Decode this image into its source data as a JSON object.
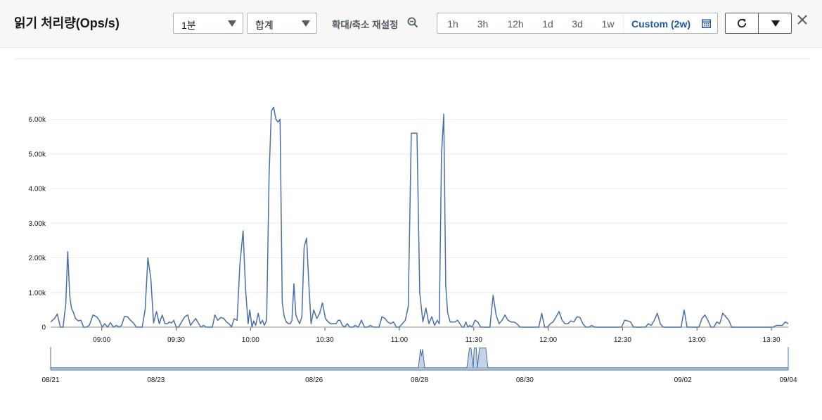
{
  "header": {
    "title": "읽기 처리량(Ops/s)",
    "period_select": "1분",
    "stat_select": "합계",
    "zoom_reset_label": "확대/축소 재설정",
    "time_ranges": [
      "1h",
      "3h",
      "12h",
      "1d",
      "3d",
      "1w"
    ],
    "custom_range_label": "Custom (2w)",
    "icons": {
      "zoom": "zoom-out-icon",
      "calendar": "calendar-icon",
      "refresh": "refresh-icon",
      "dropdown": "caret-down-icon",
      "close": "close-icon"
    }
  },
  "colors": {
    "line": "#4a70a6",
    "grid": "#e9ebed",
    "accent": "#1d5aa5",
    "mini_fill": "#c5d3e6"
  },
  "chart_data": [
    {
      "type": "line",
      "title": "",
      "xlabel": "",
      "ylabel": "",
      "ylim": [
        0,
        6600
      ],
      "grid": true,
      "y_ticks": [
        {
          "value": 0,
          "label": "0"
        },
        {
          "value": 1000,
          "label": "1.00k"
        },
        {
          "value": 2000,
          "label": "2.00k"
        },
        {
          "value": 3000,
          "label": "3.00k"
        },
        {
          "value": 4000,
          "label": "4.00k"
        },
        {
          "value": 5000,
          "label": "5.00k"
        },
        {
          "value": 6000,
          "label": "6.00k"
        }
      ],
      "x_ticks": [
        {
          "t": 540,
          "label": "09:00"
        },
        {
          "t": 570,
          "label": "09:30"
        },
        {
          "t": 600,
          "label": "10:00"
        },
        {
          "t": 630,
          "label": "10:30"
        },
        {
          "t": 660,
          "label": "11:00"
        },
        {
          "t": 690,
          "label": "11:30"
        },
        {
          "t": 720,
          "label": "12:00"
        },
        {
          "t": 750,
          "label": "12:30"
        },
        {
          "t": 780,
          "label": "13:00"
        },
        {
          "t": 810,
          "label": "13:30"
        }
      ],
      "x_unit": "minutes since 00:00",
      "series": [
        {
          "x": [
            519.4,
            521.0,
            522.1,
            523.3,
            524.4,
            525.5,
            526.3,
            527.1,
            527.8,
            528.6,
            529.4,
            530.5,
            531.6,
            532.7,
            533.8,
            535.0,
            536.5,
            537.9,
            539.0,
            540.2,
            541.2,
            542.4,
            543.5,
            544.7,
            545.9,
            547.0,
            548.0,
            549.2,
            550.4,
            551.6,
            552.8,
            554.0,
            555.2,
            556.3,
            557.5,
            558.6,
            559.8,
            560.9,
            562.1,
            563.2,
            564.4,
            565.5,
            566.5,
            567.3,
            568.1,
            569.1,
            570.0,
            571.0,
            572.2,
            573.5,
            574.7,
            575.8,
            576.8,
            577.9,
            579.1,
            580.0,
            581.0,
            582.2,
            583.4,
            584.6,
            585.6,
            586.8,
            588.0,
            589.2,
            590.3,
            591.3,
            592.3,
            593.4,
            594.6,
            595.7,
            597.0,
            598.0,
            599.0,
            599.7,
            600.6,
            601.3,
            602.1,
            603.1,
            604.0,
            604.8,
            605.6,
            606.5,
            607.5,
            608.4,
            609.3,
            610.2,
            611.1,
            611.9,
            612.8,
            613.6,
            614.4,
            615.3,
            616.0,
            616.7,
            617.5,
            618.3,
            619.1,
            619.8,
            620.7,
            621.6,
            622.6,
            623.5,
            624.4,
            625.5,
            626.7,
            627.9,
            629.0,
            630.2,
            631.3,
            632.3,
            633.4,
            634.5,
            635.3,
            636.1,
            637.0,
            637.9,
            639.0,
            640.0,
            641.1,
            642.3,
            643.5,
            644.7,
            645.9,
            647.1,
            648.3,
            649.5,
            650.7,
            651.8,
            653.0,
            654.2,
            655.3,
            656.5,
            657.6,
            658.8,
            660.0,
            661.2,
            662.4,
            663.6,
            664.8,
            666.0,
            667.1,
            668.2,
            669.5,
            670.7,
            671.9,
            673.1,
            674.2,
            675.3,
            676.1,
            677.0,
            677.9,
            678.7,
            679.5,
            680.5,
            681.5,
            682.5,
            683.5,
            684.4,
            685.3,
            686.0,
            686.8,
            687.6,
            688.4,
            689.4,
            690.5,
            691.6,
            692.8,
            694.1,
            695.3,
            696.5,
            697.8,
            699.0,
            700.2,
            701.4,
            702.6,
            703.8,
            705.1,
            706.2,
            707.4,
            708.6,
            709.7,
            710.5,
            711.5,
            712.7,
            713.8,
            715.0,
            716.2,
            717.4,
            718.6,
            719.7,
            720.9,
            722.0,
            723.2,
            724.4,
            725.6,
            726.8,
            728.0,
            729.2,
            730.4,
            731.6,
            732.8,
            734.0,
            735.2,
            736.4,
            737.6,
            738.8,
            740.0,
            741.2,
            742.4,
            743.6,
            744.8,
            746.0,
            747.2,
            748.4,
            749.6,
            750.8,
            752.0,
            753.2,
            754.4,
            755.6,
            756.8,
            758.0,
            759.2,
            760.4,
            761.6,
            762.8,
            764.0,
            765.2,
            766.4,
            767.6,
            768.8,
            770.0,
            771.2,
            772.4,
            773.6,
            774.8,
            776.0,
            777.2,
            778.4,
            779.6,
            780.8,
            782.0,
            783.2,
            784.4,
            785.6,
            786.8,
            788.0,
            789.2,
            790.4,
            791.6,
            792.8,
            794.0,
            795.2,
            796.4,
            797.6,
            798.8,
            800.0,
            801.2,
            802.4,
            803.6,
            804.8,
            806.0,
            807.2,
            808.4,
            809.6,
            810.8,
            812.0,
            813.2,
            814.4,
            815.6,
            816.8
          ],
          "y": [
            150,
            250,
            380,
            0,
            0,
            650,
            2180,
            900,
            550,
            420,
            250,
            180,
            200,
            0,
            0,
            50,
            350,
            300,
            200,
            0,
            100,
            0,
            130,
            0,
            50,
            0,
            50,
            310,
            300,
            200,
            120,
            0,
            0,
            0,
            500,
            2000,
            1400,
            120,
            450,
            100,
            350,
            100,
            100,
            150,
            120,
            200,
            0,
            0,
            150,
            300,
            350,
            50,
            150,
            250,
            100,
            0,
            50,
            0,
            0,
            0,
            350,
            200,
            280,
            250,
            150,
            100,
            0,
            240,
            200,
            1800,
            2780,
            1100,
            100,
            500,
            0,
            180,
            50,
            400,
            100,
            200,
            50,
            200,
            4400,
            6230,
            6350,
            6000,
            5920,
            6000,
            700,
            300,
            150,
            100,
            100,
            200,
            1250,
            350,
            200,
            100,
            300,
            2300,
            2570,
            1250,
            100,
            500,
            250,
            400,
            700,
            250,
            150,
            100,
            100,
            100,
            200,
            200,
            50,
            0,
            100,
            0,
            0,
            50,
            0,
            200,
            0,
            0,
            50,
            0,
            0,
            0,
            300,
            250,
            150,
            100,
            150,
            0,
            0,
            100,
            200,
            600,
            5600,
            5600,
            5600,
            1000,
            150,
            550,
            100,
            300,
            50,
            200,
            100,
            5000,
            6150,
            1200,
            400,
            150,
            150,
            150,
            200,
            100,
            0,
            0,
            150,
            0,
            50,
            0,
            200,
            150,
            0,
            0,
            0,
            0,
            920,
            350,
            100,
            200,
            350,
            200,
            150,
            150,
            100,
            0,
            0,
            0,
            0,
            0,
            0,
            0,
            0,
            400,
            0,
            0,
            100,
            150,
            300,
            450,
            200,
            100,
            100,
            180,
            150,
            300,
            280,
            100,
            0,
            0,
            50,
            0,
            0,
            0,
            0,
            0,
            0,
            0,
            0,
            0,
            0,
            200,
            180,
            150,
            0,
            0,
            0,
            0,
            0,
            100,
            50,
            200,
            400,
            100,
            0,
            0,
            0,
            0,
            0,
            0,
            0,
            500,
            0,
            0,
            0,
            0,
            0,
            250,
            350,
            200,
            0,
            0,
            150,
            100,
            400,
            300,
            200,
            0,
            0,
            0,
            0,
            0,
            0,
            0,
            0,
            0,
            0,
            0,
            0,
            0,
            0,
            0,
            50,
            50,
            50,
            150,
            100
          ]
        }
      ]
    },
    {
      "type": "area",
      "title": "",
      "xlabel": "",
      "ylabel": "",
      "grid": false,
      "x_range": [
        "08/21",
        "09/04"
      ],
      "x_ticks": [
        "08/21",
        "08/23",
        "08/26",
        "08/28",
        "08/30",
        "09/02",
        "09/04"
      ],
      "x_unit": "days since 08/21",
      "x_tick_values": [
        0,
        2,
        5,
        7,
        9,
        12,
        14
      ],
      "series": [
        {
          "x": [
            0,
            6.98,
            7.0,
            7.02,
            7.04,
            7.06,
            7.08,
            7.1,
            7.12,
            7.14,
            7.9,
            7.95,
            7.98,
            8.02,
            8.04,
            8.08,
            8.1,
            8.14,
            8.18,
            8.22,
            8.26,
            8.3,
            14
          ],
          "y": [
            0.1,
            0.1,
            0.5,
            0.9,
            0.6,
            0.9,
            0.5,
            0.1,
            0.1,
            0.1,
            0.1,
            0.95,
            0.95,
            0.1,
            0.95,
            0.95,
            0.1,
            0.95,
            0.95,
            0.95,
            0.95,
            0.1,
            0.1
          ]
        }
      ]
    }
  ]
}
